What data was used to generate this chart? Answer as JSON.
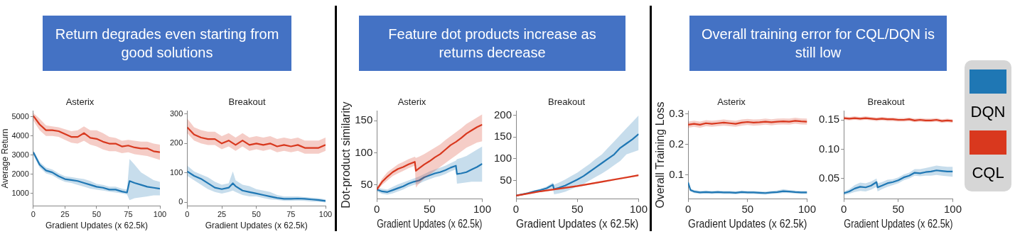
{
  "chart_data": [
    {
      "type": "other",
      "title": "Return degrades even starting from good solutions"
    },
    {
      "type": "line",
      "title": "Asterix",
      "xlabel": "Gradient Updates (x 62.5k)",
      "ylabel": "Average Return",
      "xlim": [
        0,
        100
      ],
      "xticks": [
        0,
        25,
        50,
        75,
        100
      ],
      "ylim": [
        350,
        5300
      ],
      "yticks": [
        1000,
        2000,
        3000,
        4000,
        5000
      ],
      "x": [
        0,
        5,
        10,
        15,
        20,
        25,
        30,
        35,
        40,
        45,
        50,
        55,
        60,
        65,
        70,
        75,
        80,
        85,
        90,
        95,
        100
      ],
      "series": [
        {
          "color": "#d9381e",
          "values": [
            5050,
            4600,
            4300,
            4300,
            4250,
            4100,
            3950,
            3950,
            4150,
            3900,
            3850,
            3700,
            3600,
            3600,
            3450,
            3500,
            3400,
            3350,
            3350,
            3200,
            3150
          ],
          "lower": [
            4800,
            4300,
            4000,
            4000,
            3950,
            3800,
            3650,
            3600,
            3750,
            3550,
            3450,
            3300,
            3200,
            3200,
            3100,
            3150,
            3050,
            3000,
            2950,
            2850,
            2750
          ],
          "upper": [
            5200,
            4900,
            4550,
            4500,
            4450,
            4350,
            4250,
            4300,
            4500,
            4300,
            4300,
            4150,
            3950,
            3900,
            3750,
            3800,
            3750,
            3700,
            3700,
            3600,
            3550
          ]
        },
        {
          "color": "#1f77b4",
          "x": [
            0,
            5,
            10,
            15,
            20,
            25,
            30,
            35,
            40,
            45,
            50,
            55,
            60,
            65,
            70,
            74,
            76,
            80,
            85,
            90,
            95,
            100
          ],
          "values": [
            3150,
            2500,
            2200,
            2100,
            1900,
            1750,
            1700,
            1650,
            1550,
            1450,
            1350,
            1300,
            1200,
            1200,
            1100,
            1050,
            1650,
            1550,
            1450,
            1350,
            1300,
            1250
          ],
          "lower": [
            3000,
            2350,
            2050,
            1950,
            1750,
            1600,
            1550,
            1450,
            1350,
            1250,
            1200,
            1150,
            1100,
            1050,
            1000,
            950,
            650,
            750,
            800,
            850,
            900,
            900
          ],
          "upper": [
            3250,
            2650,
            2350,
            2250,
            2050,
            1900,
            1850,
            1800,
            1750,
            1650,
            1500,
            1450,
            1350,
            1350,
            1250,
            1200,
            2800,
            2500,
            2100,
            1900,
            1700,
            1600
          ]
        }
      ]
    },
    {
      "type": "line",
      "title": "Breakout",
      "xlabel": "Gradient Updates (x 62.5k)",
      "xlim": [
        0,
        100
      ],
      "xticks": [
        0,
        25,
        50,
        75,
        100
      ],
      "ylim": [
        -12,
        310
      ],
      "yticks": [
        0,
        100,
        200,
        300
      ],
      "x": [
        0,
        5,
        10,
        15,
        20,
        25,
        30,
        35,
        40,
        45,
        50,
        55,
        60,
        65,
        70,
        75,
        80,
        85,
        90,
        95,
        100
      ],
      "series": [
        {
          "color": "#d9381e",
          "values": [
            255,
            230,
            220,
            215,
            215,
            200,
            210,
            195,
            210,
            195,
            200,
            195,
            200,
            190,
            195,
            190,
            195,
            185,
            185,
            185,
            195
          ],
          "lower": [
            235,
            210,
            200,
            195,
            195,
            180,
            190,
            175,
            190,
            175,
            180,
            175,
            180,
            170,
            175,
            170,
            175,
            165,
            165,
            165,
            175
          ],
          "upper": [
            285,
            255,
            245,
            240,
            240,
            225,
            235,
            220,
            235,
            220,
            225,
            220,
            225,
            215,
            220,
            215,
            220,
            210,
            210,
            210,
            220
          ]
        },
        {
          "color": "#1f77b4",
          "x": [
            0,
            5,
            10,
            15,
            20,
            25,
            30,
            33,
            35,
            40,
            45,
            50,
            55,
            60,
            65,
            70,
            75,
            80,
            85,
            90,
            95,
            100
          ],
          "values": [
            105,
            90,
            80,
            65,
            50,
            45,
            50,
            65,
            55,
            40,
            35,
            30,
            25,
            20,
            15,
            12,
            12,
            13,
            12,
            10,
            8,
            5
          ],
          "lower": [
            90,
            75,
            60,
            45,
            35,
            30,
            35,
            40,
            35,
            25,
            20,
            20,
            15,
            10,
            8,
            5,
            5,
            6,
            5,
            3,
            2,
            0
          ],
          "upper": [
            125,
            105,
            95,
            85,
            70,
            60,
            65,
            105,
            75,
            60,
            55,
            45,
            40,
            35,
            25,
            20,
            20,
            20,
            18,
            16,
            14,
            10
          ]
        }
      ]
    },
    {
      "type": "other",
      "title": "Feature dot products increase as returns decrease"
    },
    {
      "type": "line",
      "title": "Asterix",
      "xlabel": "Gradient Updates (x 62.5k)",
      "ylabel": "Dot-product similarity",
      "xlim": [
        0,
        100
      ],
      "xticks": [
        0,
        50,
        100
      ],
      "ylim": [
        28,
        165
      ],
      "yticks": [
        50,
        100,
        150
      ],
      "series": [
        {
          "color": "#d9381e",
          "x": [
            0,
            5,
            10,
            15,
            20,
            25,
            30,
            36,
            37,
            40,
            45,
            50,
            55,
            60,
            65,
            70,
            75,
            80,
            85,
            90,
            95,
            100
          ],
          "values": [
            43,
            55,
            63,
            70,
            75,
            78,
            82,
            86,
            72,
            76,
            82,
            87,
            93,
            98,
            105,
            112,
            117,
            123,
            130,
            135,
            140,
            144
          ],
          "lower": [
            41,
            50,
            57,
            64,
            68,
            72,
            76,
            80,
            46,
            52,
            60,
            66,
            72,
            78,
            84,
            90,
            96,
            102,
            108,
            112,
            116,
            118
          ],
          "upper": [
            46,
            60,
            70,
            76,
            82,
            86,
            90,
            94,
            92,
            94,
            98,
            103,
            108,
            113,
            120,
            126,
            132,
            138,
            145,
            150,
            155,
            160
          ]
        },
        {
          "color": "#1f77b4",
          "x": [
            0,
            5,
            10,
            15,
            20,
            25,
            30,
            35,
            40,
            45,
            50,
            55,
            60,
            65,
            70,
            75,
            76,
            80,
            85,
            90,
            95,
            100
          ],
          "values": [
            43,
            40,
            39,
            42,
            45,
            48,
            52,
            55,
            57,
            62,
            65,
            68,
            70,
            73,
            77,
            80,
            67,
            68,
            70,
            74,
            78,
            83
          ],
          "lower": [
            40,
            36,
            35,
            37,
            40,
            43,
            47,
            50,
            52,
            56,
            59,
            62,
            64,
            67,
            71,
            74,
            52,
            53,
            54,
            55,
            55,
            55
          ],
          "upper": [
            46,
            44,
            43,
            47,
            51,
            54,
            57,
            60,
            63,
            67,
            71,
            74,
            77,
            80,
            84,
            88,
            90,
            92,
            95,
            100,
            105,
            110
          ]
        }
      ]
    },
    {
      "type": "line",
      "title": "Breakout",
      "xlabel": "Gradient Updates (x 62.5k)",
      "xlim": [
        0,
        100
      ],
      "xticks": [
        0,
        50,
        100
      ],
      "ylim": [
        7,
        210
      ],
      "yticks": [
        50,
        100,
        150,
        200
      ],
      "series": [
        {
          "color": "#d9381e",
          "x": [
            0,
            10,
            20,
            30,
            40,
            50,
            60,
            70,
            80,
            90,
            100
          ],
          "values": [
            15,
            20,
            25,
            29,
            33,
            37,
            42,
            47,
            52,
            57,
            62
          ],
          "lower": [
            13,
            18,
            23,
            27,
            31,
            35,
            40,
            45,
            50,
            55,
            60
          ],
          "upper": [
            17,
            22,
            27,
            31,
            35,
            39,
            44,
            49,
            54,
            59,
            64
          ]
        },
        {
          "color": "#1f77b4",
          "x": [
            0,
            5,
            10,
            15,
            20,
            25,
            30,
            31,
            35,
            40,
            45,
            50,
            55,
            60,
            65,
            70,
            75,
            80,
            85,
            90,
            95,
            100
          ],
          "values": [
            15,
            18,
            21,
            25,
            28,
            32,
            40,
            30,
            33,
            38,
            45,
            52,
            60,
            70,
            80,
            90,
            100,
            110,
            125,
            135,
            145,
            157
          ],
          "lower": [
            14,
            17,
            19,
            23,
            25,
            28,
            32,
            18,
            20,
            24,
            30,
            36,
            42,
            50,
            58,
            66,
            75,
            85,
            95,
            110,
            115,
            120
          ],
          "upper": [
            16,
            19,
            23,
            27,
            31,
            36,
            45,
            40,
            45,
            52,
            60,
            68,
            78,
            88,
            100,
            110,
            125,
            140,
            155,
            170,
            185,
            200
          ]
        }
      ]
    },
    {
      "type": "other",
      "title": "Overall training error for CQL/DQN is still low"
    },
    {
      "type": "line",
      "title": "Asterix",
      "xlabel": "Gradient Updates (x 62.5k)",
      "ylabel": "Overall Training Loss",
      "xlim": [
        0,
        100
      ],
      "xticks": [
        0,
        50,
        100
      ],
      "ylim": [
        0.02,
        0.31
      ],
      "yticks": [
        0.1,
        0.2,
        0.3
      ],
      "x": [
        0,
        5,
        10,
        15,
        20,
        25,
        30,
        35,
        40,
        45,
        50,
        55,
        60,
        65,
        70,
        75,
        80,
        85,
        90,
        95,
        100
      ],
      "series": [
        {
          "color": "#d9381e",
          "values": [
            0.265,
            0.268,
            0.265,
            0.27,
            0.268,
            0.27,
            0.272,
            0.27,
            0.268,
            0.272,
            0.274,
            0.272,
            0.273,
            0.275,
            0.273,
            0.275,
            0.276,
            0.275,
            0.278,
            0.276,
            0.275
          ],
          "lower": [
            0.255,
            0.258,
            0.255,
            0.26,
            0.258,
            0.26,
            0.262,
            0.26,
            0.258,
            0.262,
            0.264,
            0.262,
            0.263,
            0.265,
            0.263,
            0.265,
            0.266,
            0.265,
            0.268,
            0.266,
            0.265
          ],
          "upper": [
            0.275,
            0.278,
            0.275,
            0.28,
            0.278,
            0.28,
            0.282,
            0.28,
            0.278,
            0.282,
            0.284,
            0.282,
            0.283,
            0.285,
            0.283,
            0.285,
            0.286,
            0.285,
            0.288,
            0.286,
            0.285
          ]
        },
        {
          "color": "#1f77b4",
          "x": [
            0,
            2,
            5,
            10,
            15,
            20,
            25,
            30,
            35,
            40,
            45,
            50,
            55,
            60,
            65,
            70,
            75,
            80,
            85,
            90,
            95,
            100
          ],
          "values": [
            0.075,
            0.05,
            0.045,
            0.042,
            0.043,
            0.042,
            0.043,
            0.042,
            0.042,
            0.041,
            0.043,
            0.042,
            0.042,
            0.041,
            0.04,
            0.042,
            0.043,
            0.046,
            0.045,
            0.043,
            0.042,
            0.042
          ],
          "lower": [
            0.07,
            0.045,
            0.04,
            0.037,
            0.038,
            0.037,
            0.038,
            0.037,
            0.037,
            0.036,
            0.038,
            0.037,
            0.037,
            0.036,
            0.035,
            0.037,
            0.038,
            0.04,
            0.04,
            0.038,
            0.037,
            0.037
          ],
          "upper": [
            0.08,
            0.055,
            0.05,
            0.047,
            0.048,
            0.047,
            0.048,
            0.047,
            0.047,
            0.046,
            0.048,
            0.047,
            0.047,
            0.046,
            0.045,
            0.047,
            0.049,
            0.053,
            0.05,
            0.048,
            0.047,
            0.047
          ]
        }
      ]
    },
    {
      "type": "line",
      "title": "Breakout",
      "xlabel": "Gradient Updates (x 62.5k)",
      "xlim": [
        0,
        100
      ],
      "xticks": [
        0,
        50,
        100
      ],
      "ylim": [
        0.015,
        0.165
      ],
      "yticks": [
        {
          "value": 0.05,
          "label": "0.05"
        },
        {
          "value": 0.1,
          "label": "0.10"
        },
        {
          "value": 0.15,
          "label": "0.15"
        }
      ],
      "legend": "right",
      "x": [
        0,
        5,
        10,
        15,
        20,
        25,
        30,
        35,
        40,
        45,
        50,
        55,
        60,
        65,
        70,
        75,
        80,
        85,
        90,
        95,
        100
      ],
      "series": [
        {
          "name": "DQN",
          "color": "#1f77b4",
          "x": [
            0,
            5,
            10,
            15,
            20,
            25,
            30,
            31,
            35,
            40,
            45,
            50,
            55,
            60,
            65,
            70,
            75,
            80,
            85,
            90,
            95,
            100
          ],
          "values": [
            0.025,
            0.028,
            0.033,
            0.036,
            0.035,
            0.038,
            0.044,
            0.035,
            0.038,
            0.042,
            0.044,
            0.047,
            0.052,
            0.055,
            0.06,
            0.059,
            0.061,
            0.062,
            0.064,
            0.063,
            0.062,
            0.062
          ],
          "lower": [
            0.022,
            0.024,
            0.027,
            0.029,
            0.028,
            0.031,
            0.036,
            0.028,
            0.032,
            0.036,
            0.039,
            0.042,
            0.047,
            0.05,
            0.055,
            0.054,
            0.055,
            0.055,
            0.056,
            0.055,
            0.054,
            0.053
          ],
          "upper": [
            0.028,
            0.032,
            0.039,
            0.043,
            0.042,
            0.045,
            0.05,
            0.042,
            0.044,
            0.048,
            0.049,
            0.052,
            0.057,
            0.06,
            0.066,
            0.066,
            0.068,
            0.07,
            0.072,
            0.071,
            0.07,
            0.07
          ]
        },
        {
          "name": "CQL",
          "color": "#d9381e",
          "values": [
            0.153,
            0.152,
            0.153,
            0.152,
            0.153,
            0.152,
            0.151,
            0.152,
            0.151,
            0.151,
            0.15,
            0.15,
            0.151,
            0.149,
            0.15,
            0.149,
            0.149,
            0.15,
            0.148,
            0.149,
            0.148
          ],
          "lower": [
            0.15,
            0.149,
            0.15,
            0.149,
            0.15,
            0.149,
            0.148,
            0.149,
            0.148,
            0.148,
            0.147,
            0.147,
            0.148,
            0.146,
            0.147,
            0.146,
            0.146,
            0.147,
            0.145,
            0.146,
            0.145
          ],
          "upper": [
            0.156,
            0.155,
            0.156,
            0.155,
            0.156,
            0.155,
            0.154,
            0.155,
            0.154,
            0.154,
            0.153,
            0.153,
            0.154,
            0.152,
            0.153,
            0.152,
            0.152,
            0.153,
            0.151,
            0.152,
            0.151
          ]
        }
      ]
    }
  ]
}
